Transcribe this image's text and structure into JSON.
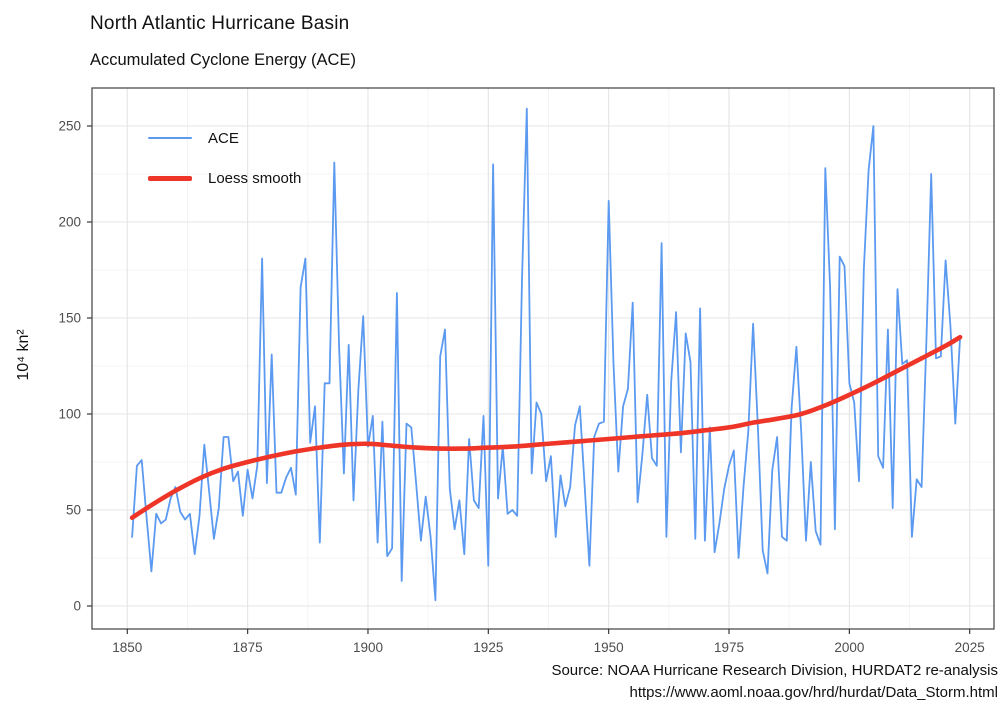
{
  "header": {
    "title": "North Atlantic Hurricane Basin",
    "subtitle": "Accumulated Cyclone Energy (ACE)"
  },
  "caption": {
    "line1": "Source: NOAA Hurricane Research Division, HURDAT2 re-analysis",
    "line2": "https://www.aoml.noaa.gov/hrd/hurdat/Data_Storm.html"
  },
  "legend": {
    "position": "top-left-inside",
    "items": [
      {
        "label": "ACE",
        "color": "#5b9af0",
        "thickness": 2.4
      },
      {
        "label": "Loess smooth",
        "color": "#ee3528",
        "thickness": 5
      }
    ]
  },
  "axes": {
    "x": {
      "ticks": [
        1850,
        1875,
        1900,
        1925,
        1950,
        1975,
        2000,
        2025
      ]
    },
    "y": {
      "title": "10⁴ kn²",
      "ticks": [
        0,
        50,
        100,
        150,
        200,
        250
      ]
    }
  },
  "chart_data": {
    "type": "line",
    "title": "North Atlantic Hurricane Basin",
    "subtitle": "Accumulated Cyclone Energy (ACE)",
    "xlabel": "",
    "ylabel": "10^4 kn^2",
    "xlim": [
      1842.7,
      2030.1
    ],
    "ylim": [
      -12,
      270
    ],
    "grid": "major+minor",
    "legend_position": "top-left-inside",
    "series": [
      {
        "name": "ACE",
        "color": "#5b9af0",
        "width": 1.8,
        "x_start": 1851,
        "x_step": 1,
        "values": [
          36,
          73,
          76,
          46,
          18,
          48,
          43,
          45,
          56,
          62,
          49,
          45,
          48,
          27,
          47,
          84,
          60,
          35,
          51,
          88,
          88,
          65,
          70,
          47,
          71,
          56,
          73,
          181,
          64,
          131,
          59,
          59,
          67,
          72,
          58,
          166,
          181,
          85,
          104,
          33,
          116,
          116,
          231,
          135,
          69,
          136,
          55,
          113,
          151,
          83,
          99,
          33,
          96,
          26,
          30,
          163,
          13,
          95,
          93,
          64,
          34,
          57,
          36,
          3,
          130,
          144,
          61,
          40,
          55,
          27,
          87,
          55,
          51,
          99,
          21,
          230,
          56,
          83,
          48,
          50,
          47,
          170,
          259,
          69,
          106,
          100,
          65,
          78,
          36,
          68,
          52,
          62,
          94,
          104,
          63,
          21,
          88,
          95,
          96,
          211,
          126,
          70,
          104,
          113,
          158,
          54,
          79,
          110,
          77,
          73,
          189,
          36,
          117,
          153,
          80,
          142,
          127,
          35,
          155,
          34,
          93,
          28,
          43,
          61,
          73,
          81,
          25,
          62,
          91,
          147,
          93,
          29,
          17,
          71,
          88,
          36,
          34,
          103,
          135,
          91,
          34,
          75,
          39,
          32,
          228,
          166,
          40,
          182,
          177,
          116,
          106,
          65,
          175,
          227,
          250,
          78,
          72,
          144,
          51,
          165,
          126,
          128,
          36,
          66,
          62,
          138,
          225,
          129,
          130,
          180,
          146,
          95,
          140
        ]
      },
      {
        "name": "Loess smooth",
        "color": "#ee3528",
        "width": 4.6,
        "points": [
          [
            1851,
            46
          ],
          [
            1855,
            52.5
          ],
          [
            1860,
            60
          ],
          [
            1865,
            66.5
          ],
          [
            1870,
            71.5
          ],
          [
            1875,
            75
          ],
          [
            1880,
            78
          ],
          [
            1885,
            80.5
          ],
          [
            1890,
            82.5
          ],
          [
            1895,
            84
          ],
          [
            1900,
            84.5
          ],
          [
            1905,
            83.5
          ],
          [
            1910,
            82.5
          ],
          [
            1915,
            82
          ],
          [
            1920,
            82
          ],
          [
            1925,
            82.5
          ],
          [
            1930,
            83
          ],
          [
            1935,
            84
          ],
          [
            1940,
            85
          ],
          [
            1945,
            86
          ],
          [
            1950,
            87
          ],
          [
            1955,
            88
          ],
          [
            1960,
            89
          ],
          [
            1965,
            90
          ],
          [
            1970,
            91.5
          ],
          [
            1975,
            93
          ],
          [
            1980,
            95.5
          ],
          [
            1985,
            97.5
          ],
          [
            1990,
            100
          ],
          [
            1995,
            104.5
          ],
          [
            2000,
            110
          ],
          [
            2005,
            116
          ],
          [
            2010,
            122.5
          ],
          [
            2015,
            129
          ],
          [
            2020,
            135.5
          ],
          [
            2023,
            140
          ]
        ]
      }
    ]
  },
  "style": {
    "grid_major_color": "#e4e4e4",
    "grid_minor_color": "#f1f1f1",
    "panel_border_color": "#4d4d4d",
    "tick_color": "#383838",
    "tick_label_color": "#4d4d4d",
    "background": "#ffffff"
  }
}
